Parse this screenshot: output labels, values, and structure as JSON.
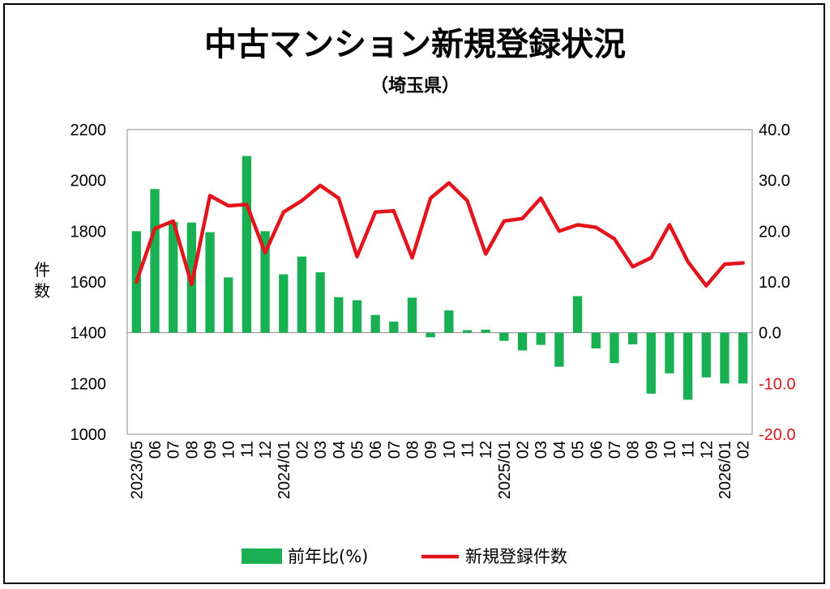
{
  "chart_data": {
    "type": "bar+line",
    "title": "中古マンション新規登録状況",
    "subtitle": "（埼玉県）",
    "ylabel": "件\n数",
    "left_axis": {
      "min": 1000,
      "max": 2200,
      "step": 200,
      "ticks": [
        "1000",
        "1200",
        "1400",
        "1600",
        "1800",
        "2000",
        "2200"
      ]
    },
    "right_axis": {
      "min": -20.0,
      "max": 40.0,
      "step": 10,
      "ticks": [
        "-20.0",
        "-10.0",
        "0.0",
        "10.0",
        "20.0",
        "30.0",
        "40.0"
      ],
      "negative_color": "#d9141c"
    },
    "categories": [
      "2023/05",
      "06",
      "07",
      "08",
      "09",
      "10",
      "11",
      "12",
      "2024/01",
      "02",
      "03",
      "04",
      "05",
      "06",
      "07",
      "08",
      "09",
      "10",
      "11",
      "12",
      "2025/01",
      "02",
      "03",
      "04",
      "05",
      "06",
      "07",
      "08",
      "09",
      "10",
      "11",
      "12",
      "2026/01",
      "02"
    ],
    "series": [
      {
        "name": "前年比(%)",
        "type": "bar",
        "axis": "right",
        "color": "#19b054",
        "values": [
          20.0,
          28.3,
          21.8,
          21.7,
          19.8,
          10.9,
          34.8,
          20.0,
          11.5,
          15.0,
          11.9,
          7.0,
          6.4,
          3.5,
          2.2,
          6.9,
          -0.9,
          4.4,
          0.5,
          0.6,
          -1.6,
          -3.5,
          -2.4,
          -6.7,
          7.2,
          -3.1,
          -6.0,
          -2.3,
          -12.0,
          -8.0,
          -13.2,
          -8.8,
          -10.0,
          -10.0
        ]
      },
      {
        "name": "新規登録件数",
        "type": "line",
        "axis": "left",
        "color": "#e3141b",
        "values": [
          1600,
          1810,
          1840,
          1590,
          1940,
          1900,
          1905,
          1715,
          1875,
          1920,
          1980,
          1930,
          1700,
          1875,
          1880,
          1695,
          1930,
          1990,
          1920,
          1710,
          1840,
          1850,
          1930,
          1800,
          1825,
          1815,
          1770,
          1660,
          1695,
          1825,
          1680,
          1585,
          1670,
          1675
        ]
      }
    ],
    "legend": {
      "position": "bottom",
      "items": [
        "前年比(%)",
        "新規登録件数"
      ]
    },
    "grid": false
  }
}
